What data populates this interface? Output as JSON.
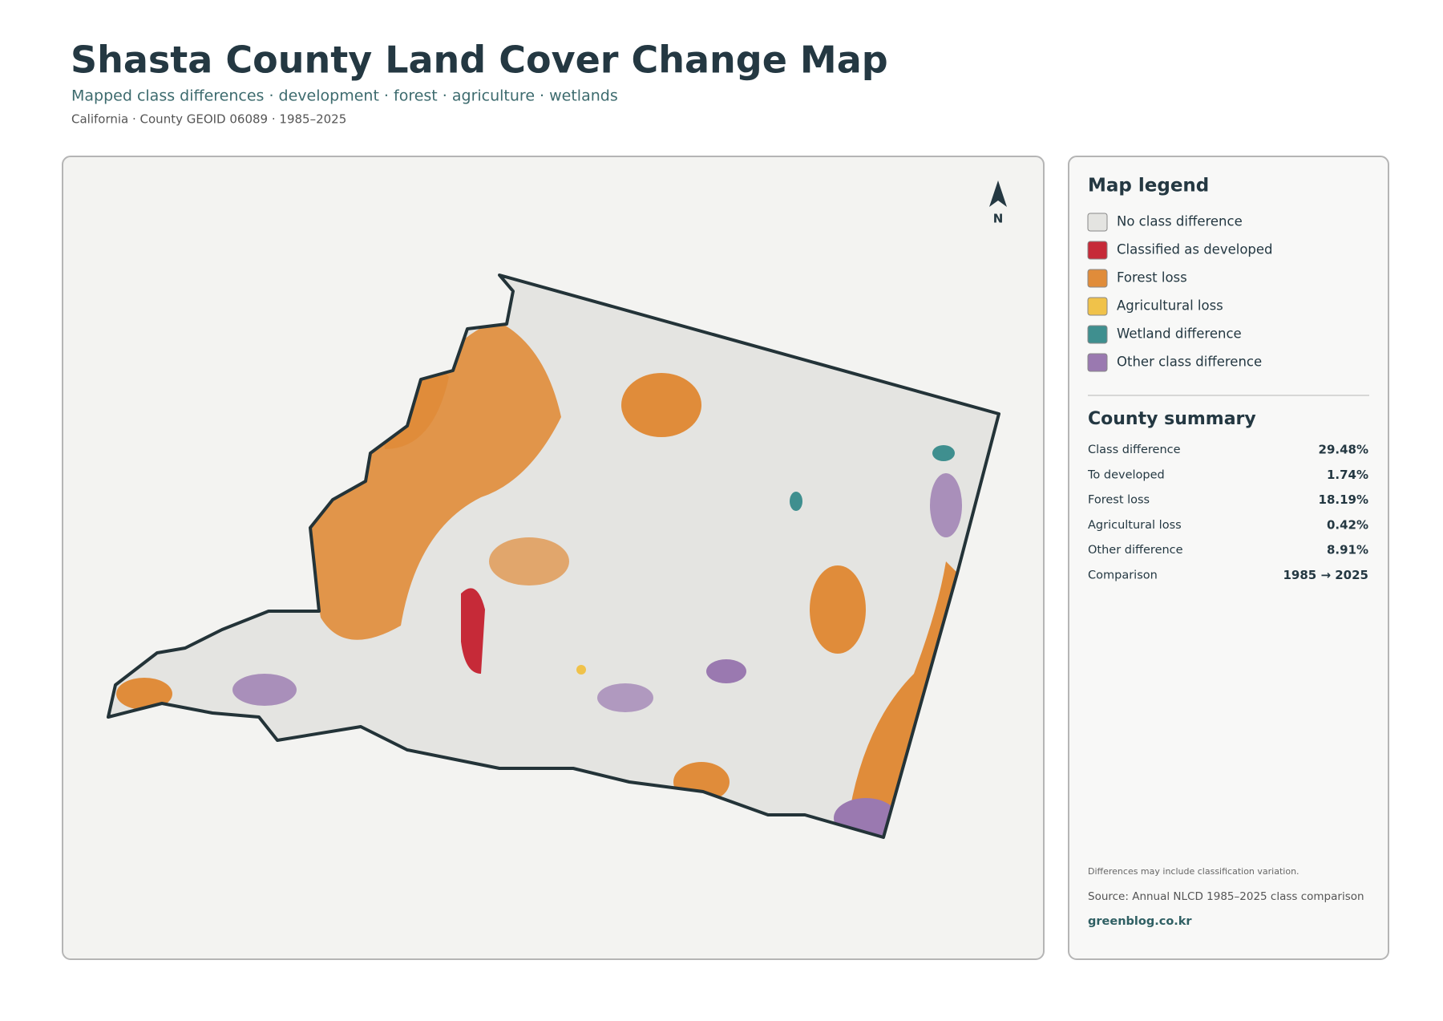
{
  "header": {
    "title": "Shasta County Land Cover Change Map",
    "subtitle": "Mapped class differences · development · forest · agriculture · wetlands",
    "meta": "California · County GEOID 06089 · 1985–2025"
  },
  "map": {
    "north_label": "N"
  },
  "legend": {
    "title": "Map legend",
    "items": [
      {
        "label": "No class difference",
        "color": "#e4e4e1"
      },
      {
        "label": "Classified as developed",
        "color": "#c62a38"
      },
      {
        "label": "Forest loss",
        "color": "#e08c3a"
      },
      {
        "label": "Agricultural loss",
        "color": "#f0c24a"
      },
      {
        "label": "Wetland difference",
        "color": "#3f8f8f"
      },
      {
        "label": "Other class difference",
        "color": "#9a79b0"
      }
    ]
  },
  "summary": {
    "title": "County summary",
    "rows": [
      {
        "label": "Class difference",
        "value": "29.48%"
      },
      {
        "label": "To developed",
        "value": "1.74%"
      },
      {
        "label": "Forest loss",
        "value": "18.19%"
      },
      {
        "label": "Agricultural loss",
        "value": "0.42%"
      },
      {
        "label": "Other difference",
        "value": "8.91%"
      },
      {
        "label": "Comparison",
        "value": "1985 → 2025"
      }
    ]
  },
  "footer": {
    "note": "Differences may include classification variation.",
    "source": "Source: Annual NLCD 1985–2025 class comparison",
    "site": "greenblog.co.kr"
  }
}
